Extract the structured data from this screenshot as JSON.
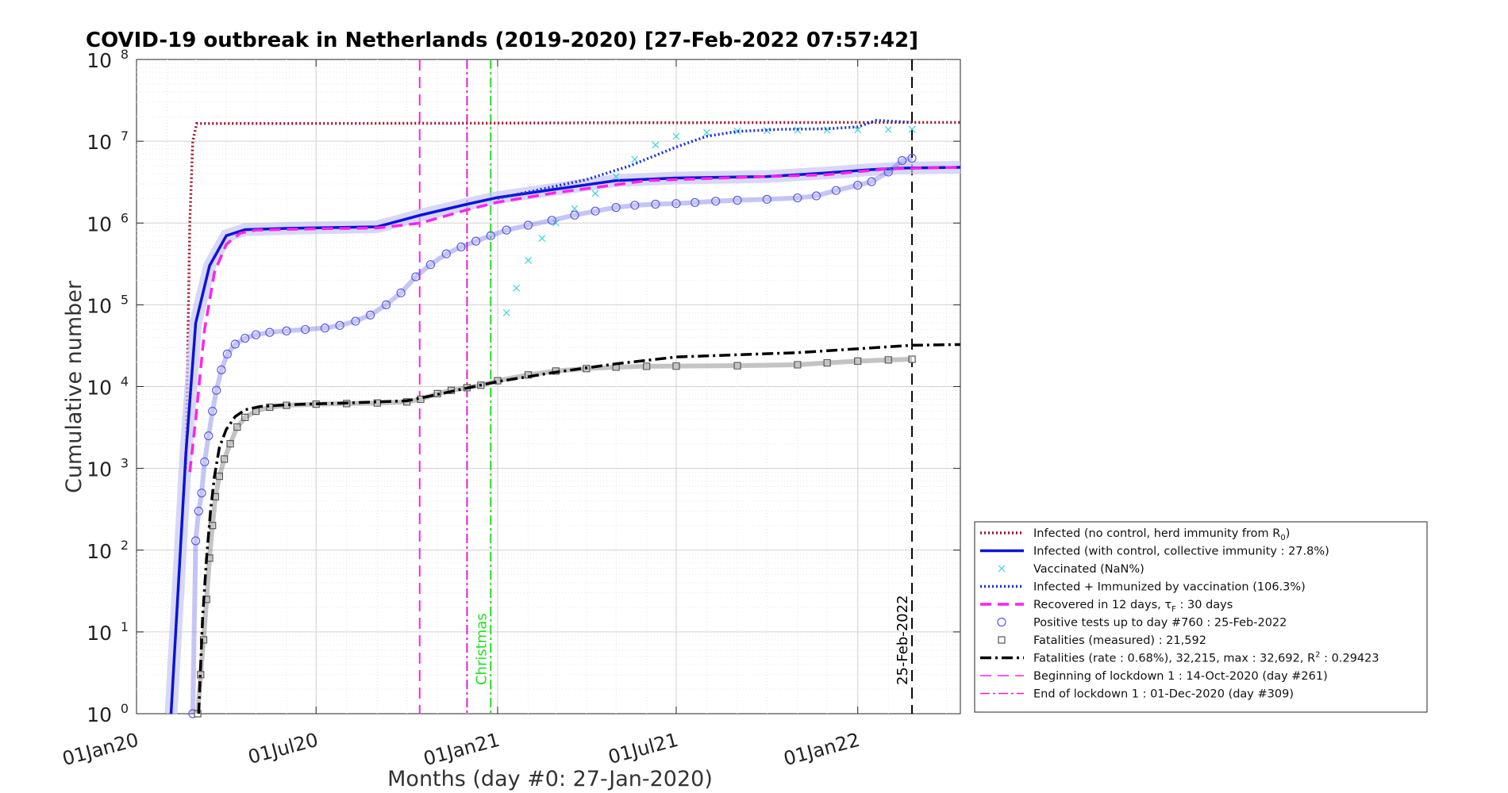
{
  "chart_data": {
    "type": "line",
    "title": "COVID-19 outbreak in Netherlands (2019-2020) [27-Feb-2022 07:57:42]",
    "xlabel": "Months (day #0: 27-Jan-2020)",
    "ylabel": "Cumulative number",
    "y_scale": "log",
    "ylim": [
      1,
      100000000
    ],
    "xlim": [
      "2020-01-01",
      "2022-04-15"
    ],
    "grid": true,
    "legend_position": "lower-right outside",
    "x_ticks": [
      "01Jan20",
      "01Jul20",
      "01Jan21",
      "01Jul21",
      "01Jan22"
    ],
    "y_ticks": [
      {
        "base": "10",
        "exp": "0"
      },
      {
        "base": "10",
        "exp": "1"
      },
      {
        "base": "10",
        "exp": "2"
      },
      {
        "base": "10",
        "exp": "3"
      },
      {
        "base": "10",
        "exp": "4"
      },
      {
        "base": "10",
        "exp": "5"
      },
      {
        "base": "10",
        "exp": "6"
      },
      {
        "base": "10",
        "exp": "7"
      },
      {
        "base": "10",
        "exp": "8"
      }
    ],
    "series": [
      {
        "name": "Infected (no control, herd immunity from R0)",
        "color": "#a3142e",
        "style": "dotted",
        "x": [
          "2020-02-20",
          "2020-02-24",
          "2020-02-27",
          "2020-03-02",
          "2020-06-01",
          "2020-12-01",
          "2021-04-01",
          "2021-09-01",
          "2022-01-01",
          "2022-04-15"
        ],
        "y": [
          1000,
          1000000,
          10000000,
          16500000,
          16500000,
          16600000,
          16800000,
          16900000,
          17000000,
          17000000
        ]
      },
      {
        "name": "Infected (with control, collective immunity : 27.8%)",
        "color": "#0a14d9",
        "style": "solid",
        "x": [
          "2020-02-05",
          "2020-02-12",
          "2020-02-20",
          "2020-03-01",
          "2020-03-15",
          "2020-04-01",
          "2020-04-20",
          "2020-06-01",
          "2020-09-01",
          "2020-10-15",
          "2020-12-01",
          "2021-01-01",
          "2021-03-01",
          "2021-05-01",
          "2021-07-01",
          "2021-10-01",
          "2021-12-01",
          "2022-01-15",
          "2022-02-15",
          "2022-04-15"
        ],
        "y": [
          1,
          30,
          1500,
          60000,
          300000,
          700000,
          830000,
          860000,
          900000,
          1250000,
          1700000,
          2050000,
          2600000,
          3300000,
          3550000,
          3700000,
          4100000,
          4500000,
          4700000,
          4800000
        ]
      },
      {
        "name": "Vaccinated (NaN%)",
        "color": "#33d6e0",
        "style": "markers-x",
        "x": [
          "2021-01-10",
          "2021-01-20",
          "2021-02-01",
          "2021-02-15",
          "2021-03-01",
          "2021-03-20",
          "2021-04-10",
          "2021-05-01",
          "2021-05-20",
          "2021-06-10",
          "2021-07-01",
          "2021-08-01",
          "2021-09-01",
          "2021-10-01",
          "2021-11-01",
          "2021-12-01",
          "2022-01-01",
          "2022-02-01",
          "2022-02-25"
        ],
        "y": [
          80000,
          160000,
          350000,
          650000,
          1000000,
          1500000,
          2300000,
          3700000,
          6000000,
          9000000,
          11500000,
          12800000,
          13300000,
          13500000,
          13600000,
          13700000,
          13800000,
          13900000,
          14000000
        ]
      },
      {
        "name": "Infected + Immunized by vaccination (106.3%)",
        "color": "#1a2fe0",
        "style": "dotted",
        "x": [
          "2021-01-01",
          "2021-02-15",
          "2021-04-01",
          "2021-05-15",
          "2021-07-01",
          "2021-08-01",
          "2021-09-01",
          "2021-10-15",
          "2021-12-01",
          "2022-01-01",
          "2022-01-20",
          "2022-02-25"
        ],
        "y": [
          2000000,
          2600000,
          3400000,
          5000000,
          8500000,
          11500000,
          13200000,
          14000000,
          14200000,
          15000000,
          18000000,
          17000000
        ]
      },
      {
        "name": "Recovered in 12 days, τF : 30 days",
        "color": "#ff22ee",
        "style": "dashed",
        "x": [
          "2020-02-24",
          "2020-03-01",
          "2020-03-10",
          "2020-03-20",
          "2020-04-01",
          "2020-04-15",
          "2020-05-01",
          "2020-07-01",
          "2020-09-01",
          "2020-10-15",
          "2020-12-01",
          "2021-01-01",
          "2021-03-01",
          "2021-06-01",
          "2021-09-01",
          "2021-12-01",
          "2022-02-01",
          "2022-04-15"
        ],
        "y": [
          900,
          4000,
          50000,
          250000,
          550000,
          750000,
          820000,
          850000,
          870000,
          1000000,
          1450000,
          1800000,
          2350000,
          3300000,
          3600000,
          3900000,
          4600000,
          4800000
        ]
      },
      {
        "name": "Positive tests up to day #760 : 25-Feb-2022",
        "color": "#5a5ae6",
        "style": "markers-circle",
        "x": [
          "2020-02-27",
          "2020-03-01",
          "2020-03-04",
          "2020-03-07",
          "2020-03-10",
          "2020-03-14",
          "2020-03-18",
          "2020-03-22",
          "2020-03-27",
          "2020-04-02",
          "2020-04-10",
          "2020-04-20",
          "2020-05-01",
          "2020-05-15",
          "2020-06-01",
          "2020-06-20",
          "2020-07-10",
          "2020-07-25",
          "2020-08-10",
          "2020-08-25",
          "2020-09-10",
          "2020-09-25",
          "2020-10-10",
          "2020-10-25",
          "2020-11-10",
          "2020-11-25",
          "2020-12-10",
          "2020-12-25",
          "2021-01-10",
          "2021-02-01",
          "2021-02-25",
          "2021-03-20",
          "2021-04-10",
          "2021-05-01",
          "2021-05-20",
          "2021-06-10",
          "2021-07-01",
          "2021-07-20",
          "2021-08-10",
          "2021-09-01",
          "2021-10-01",
          "2021-11-01",
          "2021-11-20",
          "2021-12-10",
          "2022-01-01",
          "2022-01-15",
          "2022-02-01",
          "2022-02-15",
          "2022-02-25"
        ],
        "y": [
          1,
          130,
          300,
          500,
          1200,
          2500,
          5000,
          9000,
          16000,
          25000,
          33000,
          39000,
          43000,
          46000,
          48000,
          50000,
          52000,
          56000,
          63000,
          75000,
          100000,
          140000,
          220000,
          310000,
          420000,
          510000,
          600000,
          700000,
          820000,
          940000,
          1080000,
          1250000,
          1400000,
          1550000,
          1650000,
          1700000,
          1730000,
          1780000,
          1850000,
          1900000,
          1950000,
          2030000,
          2150000,
          2500000,
          2900000,
          3200000,
          4200000,
          5800000,
          6200000
        ]
      },
      {
        "name": "Fatalities (measured) : 21,592",
        "color": "#555555",
        "style": "markers-square",
        "x": [
          "2020-03-03",
          "2020-03-06",
          "2020-03-09",
          "2020-03-12",
          "2020-03-15",
          "2020-03-18",
          "2020-03-21",
          "2020-03-25",
          "2020-03-30",
          "2020-04-05",
          "2020-04-12",
          "2020-04-20",
          "2020-05-01",
          "2020-05-15",
          "2020-06-01",
          "2020-07-01",
          "2020-08-01",
          "2020-09-01",
          "2020-10-01",
          "2020-10-15",
          "2020-11-01",
          "2020-11-15",
          "2020-12-01",
          "2020-12-15",
          "2021-01-01",
          "2021-02-01",
          "2021-03-01",
          "2021-04-01",
          "2021-05-01",
          "2021-06-01",
          "2021-07-01",
          "2021-09-01",
          "2021-11-01",
          "2021-12-01",
          "2022-01-01",
          "2022-02-01",
          "2022-02-25"
        ],
        "y": [
          1,
          3,
          8,
          25,
          80,
          200,
          450,
          800,
          1300,
          2000,
          3200,
          4200,
          5000,
          5600,
          5900,
          6100,
          6200,
          6300,
          6500,
          7000,
          8200,
          9000,
          9700,
          10400,
          11800,
          13900,
          15500,
          16600,
          17300,
          17700,
          17800,
          18000,
          18500,
          19500,
          20500,
          21200,
          21592
        ]
      },
      {
        "name": "Fatalities (rate : 0.68%), 32,215, max : 32,692, R2 : 0.29423",
        "color": "#000000",
        "style": "dashdot",
        "x": [
          "2020-03-04",
          "2020-03-08",
          "2020-03-12",
          "2020-03-16",
          "2020-03-20",
          "2020-03-25",
          "2020-04-01",
          "2020-04-10",
          "2020-04-20",
          "2020-05-05",
          "2020-06-01",
          "2020-08-01",
          "2020-10-01",
          "2020-11-01",
          "2020-12-01",
          "2021-01-01",
          "2021-03-01",
          "2021-05-01",
          "2021-07-01",
          "2021-09-01",
          "2021-11-01",
          "2022-01-01",
          "2022-02-25",
          "2022-04-15"
        ],
        "y": [
          1,
          15,
          80,
          300,
          800,
          1800,
          3000,
          4300,
          5200,
          5700,
          6000,
          6300,
          6700,
          8000,
          9600,
          11500,
          15000,
          19000,
          23000,
          24500,
          26000,
          29000,
          32000,
          32692
        ]
      }
    ],
    "vertical_lines": [
      {
        "name": "Beginning of lockdown 1 : 14-Oct-2020 (day #261)",
        "x": "2020-10-14",
        "color": "#ff22ee",
        "style": "dashed"
      },
      {
        "name": "End of lockdown 1 : 01-Dec-2020 (day #309)",
        "x": "2020-12-01",
        "color": "#e020d0",
        "style": "dashdot"
      },
      {
        "label": "Christmas",
        "x": "2020-12-25",
        "color": "#22dd22",
        "style": "dashdot"
      },
      {
        "label": "25-Feb-2022",
        "x": "2022-02-25",
        "color": "#000000",
        "style": "dashed"
      }
    ],
    "legend": [
      {
        "text": "Infected (no control, herd immunity from R",
        "sub": "0",
        "suffix": ")",
        "color": "#a3142e",
        "style": "dotted"
      },
      {
        "text": "Infected (with control, collective immunity : 27.8%)",
        "color": "#0a14d9",
        "style": "solid"
      },
      {
        "text": "Vaccinated (NaN%)",
        "color": "#33d6e0",
        "style": "markers-x"
      },
      {
        "text": "Infected + Immunized by vaccination (106.3%)",
        "color": "#1a2fe0",
        "style": "dotted"
      },
      {
        "text": "Recovered in 12 days, τ",
        "sub": "F",
        "suffix": " : 30 days",
        "color": "#ff22ee",
        "style": "dashed"
      },
      {
        "text": "Positive tests up to day #760 : 25-Feb-2022",
        "color": "#5a5ae6",
        "style": "markers-circle"
      },
      {
        "text": "Fatalities (measured) : 21,592",
        "color": "#555555",
        "style": "markers-square"
      },
      {
        "text": "Fatalities (rate : 0.68%), 32,215, max : 32,692, R",
        "sup": "2",
        "suffix": " : 0.29423",
        "color": "#000000",
        "style": "dashdot"
      },
      {
        "text": "Beginning of lockdown 1 : 14-Oct-2020 (day #261)",
        "color": "#ff22ee",
        "style": "dashed-thin"
      },
      {
        "text": "End of lockdown 1 : 01-Dec-2020 (day #309)",
        "color": "#e020d0",
        "style": "dashdot-thin"
      }
    ]
  }
}
